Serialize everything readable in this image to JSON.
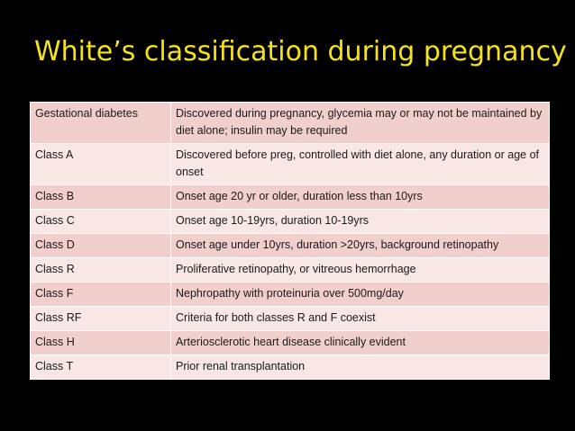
{
  "slide": {
    "title": "White’s classification during pregnancy"
  },
  "table": {
    "rows": [
      {
        "class": "Gestational diabetes",
        "description": "Discovered during pregnancy, glycemia may or may not be maintained by diet alone; insulin may be required"
      },
      {
        "class": "Class A",
        "description": "Discovered before preg, controlled with diet alone, any duration or age of onset"
      },
      {
        "class": "Class B",
        "description": "Onset age 20 yr or older, duration less than 10yrs"
      },
      {
        "class": "Class C",
        "description": "Onset age 10-19yrs, duration 10-19yrs"
      },
      {
        "class": "Class D",
        "description": "Onset age under 10yrs, duration >20yrs, background retinopathy"
      },
      {
        "class": "Class R",
        "description": "Proliferative retinopathy, or vitreous hemorrhage"
      },
      {
        "class": "Class F",
        "description": "Nephropathy with proteinuria over 500mg/day"
      },
      {
        "class": "Class RF",
        "description": "Criteria for both classes R and F coexist"
      },
      {
        "class": "Class H",
        "description": "Arteriosclerotic heart disease clinically evident"
      },
      {
        "class": "Class T",
        "description": "Prior renal transplantation"
      }
    ]
  },
  "colors": {
    "background": "#000000",
    "title": "#F5E21A",
    "row_dark": "#F0CFCC",
    "row_light": "#F8E7E5",
    "cell_border": "#FFFFFF",
    "text": "#1A1A1A"
  }
}
